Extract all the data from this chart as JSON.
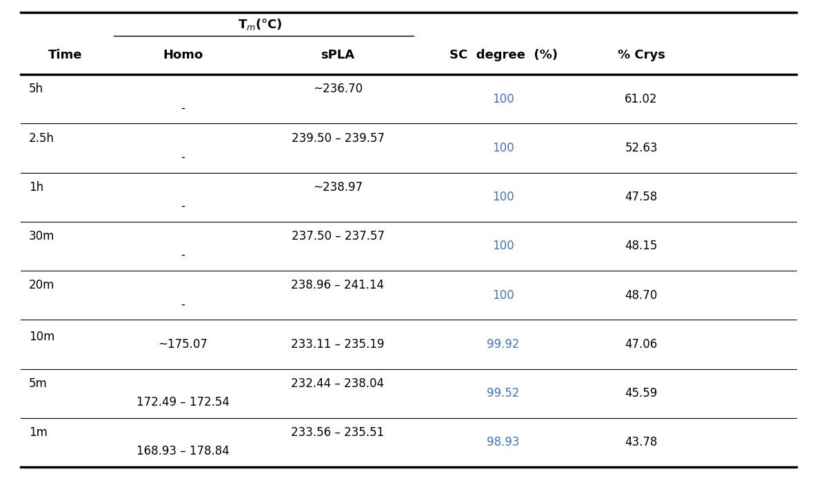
{
  "tm_label": "T$_m$(°C)",
  "rows": [
    {
      "time": "5h",
      "homo": "-",
      "spla": "~236.70",
      "sc": "100",
      "crys": "61.02",
      "single": false
    },
    {
      "time": "2.5h",
      "homo": "-",
      "spla": "239.50 – 239.57",
      "sc": "100",
      "crys": "52.63",
      "single": false
    },
    {
      "time": "1h",
      "homo": "-",
      "spla": "~238.97",
      "sc": "100",
      "crys": "47.58",
      "single": false
    },
    {
      "time": "30m",
      "homo": "-",
      "spla": "237.50 – 237.57",
      "sc": "100",
      "crys": "48.15",
      "single": false
    },
    {
      "time": "20m",
      "homo": "-",
      "spla": "238.96 – 241.14",
      "sc": "100",
      "crys": "48.70",
      "single": false
    },
    {
      "time": "10m",
      "homo": "~175.07",
      "spla": "233.11 – 235.19",
      "sc": "99.92",
      "crys": "47.06",
      "single": true
    },
    {
      "time": "5m",
      "homo": "172.49 – 172.54",
      "spla": "232.44 – 238.04",
      "sc": "99.52",
      "crys": "45.59",
      "single": false
    },
    {
      "time": "1m",
      "homo": "168.93 – 178.84",
      "spla": "233.56 – 235.51",
      "sc": "98.93",
      "crys": "43.78",
      "single": false
    }
  ],
  "sc_color": "#4472C4",
  "text_color": "#000000",
  "bg_color": "#FFFFFF",
  "header_fontsize": 13,
  "cell_fontsize": 12,
  "time_fontsize": 12
}
